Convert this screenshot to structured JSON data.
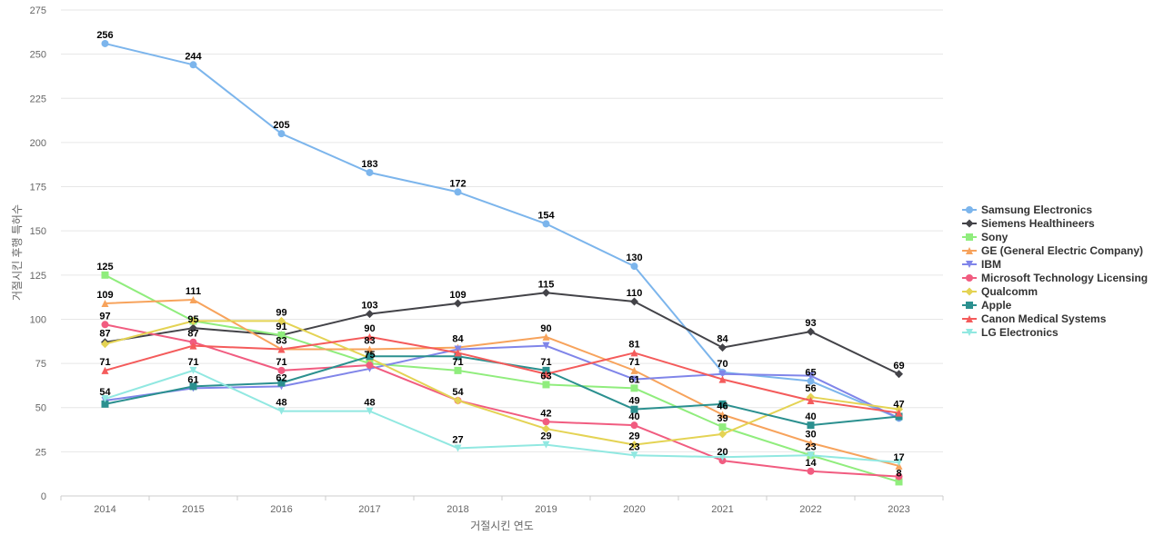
{
  "chart_data": {
    "type": "line",
    "title": "",
    "xlabel": "거절시킨 연도",
    "ylabel": "거절시킨 후행 특허수",
    "x": [
      2014,
      2015,
      2016,
      2017,
      2018,
      2019,
      2020,
      2021,
      2022,
      2023
    ],
    "ylim": [
      0,
      275
    ],
    "yticks": [
      0,
      25,
      50,
      75,
      100,
      125,
      150,
      175,
      200,
      225,
      250,
      275
    ],
    "grid": true,
    "legend_position": "right",
    "series": [
      {
        "name": "Samsung Electronics",
        "color": "#7cb5ec",
        "marker": "circle",
        "values": [
          256,
          244,
          205,
          183,
          172,
          154,
          130,
          70,
          65,
          44
        ]
      },
      {
        "name": "Siemens Healthineers",
        "color": "#434348",
        "marker": "diamond",
        "values": [
          87,
          95,
          91,
          103,
          109,
          115,
          110,
          84,
          93,
          69
        ]
      },
      {
        "name": "Sony",
        "color": "#90ed7d",
        "marker": "square",
        "values": [
          125,
          99,
          91,
          75,
          71,
          63,
          61,
          39,
          23,
          8
        ]
      },
      {
        "name": "GE (General Electric Company)",
        "color": "#f7a35c",
        "marker": "triangle",
        "values": [
          109,
          111,
          83,
          83,
          84,
          90,
          71,
          46,
          30,
          17
        ]
      },
      {
        "name": "IBM",
        "color": "#8085e9",
        "marker": "triangle-down",
        "values": [
          54,
          61,
          62,
          72,
          83,
          85,
          66,
          69,
          68,
          44
        ]
      },
      {
        "name": "Microsoft Technology Licensing",
        "color": "#f15c80",
        "marker": "circle",
        "values": [
          97,
          87,
          71,
          74,
          54,
          42,
          40,
          20,
          14,
          11
        ]
      },
      {
        "name": "Qualcomm",
        "color": "#e4d354",
        "marker": "diamond",
        "values": [
          86,
          99,
          99,
          78,
          54,
          38,
          29,
          35,
          56,
          49
        ]
      },
      {
        "name": "Apple",
        "color": "#2b908f",
        "marker": "square",
        "values": [
          52,
          62,
          64,
          79,
          79,
          71,
          49,
          52,
          40,
          45
        ]
      },
      {
        "name": "Canon Medical Systems",
        "color": "#f45b5b",
        "marker": "triangle",
        "values": [
          71,
          85,
          83,
          90,
          81,
          69,
          81,
          66,
          54,
          47
        ]
      },
      {
        "name": "LG Electronics",
        "color": "#91e8e1",
        "marker": "triangle-down",
        "values": [
          55,
          71,
          48,
          48,
          27,
          29,
          23,
          22,
          23,
          19
        ]
      }
    ],
    "data_labels": [
      {
        "text": "256",
        "x": 2014,
        "y": 256
      },
      {
        "text": "125",
        "x": 2014,
        "y": 125
      },
      {
        "text": "109",
        "x": 2014,
        "y": 109
      },
      {
        "text": "97",
        "x": 2014,
        "y": 97
      },
      {
        "text": "87",
        "x": 2014,
        "y": 87
      },
      {
        "text": "71",
        "x": 2014,
        "y": 71
      },
      {
        "text": "54",
        "x": 2014,
        "y": 54
      },
      {
        "text": "244",
        "x": 2015,
        "y": 244
      },
      {
        "text": "111",
        "x": 2015,
        "y": 111
      },
      {
        "text": "95",
        "x": 2015,
        "y": 95
      },
      {
        "text": "87",
        "x": 2015,
        "y": 87
      },
      {
        "text": "71",
        "x": 2015,
        "y": 71
      },
      {
        "text": "61",
        "x": 2015,
        "y": 61
      },
      {
        "text": "205",
        "x": 2016,
        "y": 205
      },
      {
        "text": "99",
        "x": 2016,
        "y": 99
      },
      {
        "text": "91",
        "x": 2016,
        "y": 91
      },
      {
        "text": "83",
        "x": 2016,
        "y": 83
      },
      {
        "text": "71",
        "x": 2016,
        "y": 71
      },
      {
        "text": "62",
        "x": 2016,
        "y": 62
      },
      {
        "text": "48",
        "x": 2016,
        "y": 48
      },
      {
        "text": "183",
        "x": 2017,
        "y": 183
      },
      {
        "text": "103",
        "x": 2017,
        "y": 103
      },
      {
        "text": "90",
        "x": 2017,
        "y": 90
      },
      {
        "text": "83",
        "x": 2017,
        "y": 83
      },
      {
        "text": "75",
        "x": 2017,
        "y": 75
      },
      {
        "text": "48",
        "x": 2017,
        "y": 48
      },
      {
        "text": "172",
        "x": 2018,
        "y": 172
      },
      {
        "text": "109",
        "x": 2018,
        "y": 109
      },
      {
        "text": "84",
        "x": 2018,
        "y": 84
      },
      {
        "text": "71",
        "x": 2018,
        "y": 71
      },
      {
        "text": "54",
        "x": 2018,
        "y": 54
      },
      {
        "text": "27",
        "x": 2018,
        "y": 27
      },
      {
        "text": "154",
        "x": 2019,
        "y": 154
      },
      {
        "text": "115",
        "x": 2019,
        "y": 115
      },
      {
        "text": "90",
        "x": 2019,
        "y": 90
      },
      {
        "text": "71",
        "x": 2019,
        "y": 71
      },
      {
        "text": "63",
        "x": 2019,
        "y": 63
      },
      {
        "text": "42",
        "x": 2019,
        "y": 42
      },
      {
        "text": "29",
        "x": 2019,
        "y": 29
      },
      {
        "text": "130",
        "x": 2020,
        "y": 130
      },
      {
        "text": "110",
        "x": 2020,
        "y": 110
      },
      {
        "text": "81",
        "x": 2020,
        "y": 81
      },
      {
        "text": "71",
        "x": 2020,
        "y": 71
      },
      {
        "text": "61",
        "x": 2020,
        "y": 61
      },
      {
        "text": "49",
        "x": 2020,
        "y": 49
      },
      {
        "text": "40",
        "x": 2020,
        "y": 40
      },
      {
        "text": "29",
        "x": 2020,
        "y": 29
      },
      {
        "text": "23",
        "x": 2020,
        "y": 23
      },
      {
        "text": "84",
        "x": 2021,
        "y": 84
      },
      {
        "text": "70",
        "x": 2021,
        "y": 70
      },
      {
        "text": "46",
        "x": 2021,
        "y": 46
      },
      {
        "text": "39",
        "x": 2021,
        "y": 39
      },
      {
        "text": "20",
        "x": 2021,
        "y": 20
      },
      {
        "text": "93",
        "x": 2022,
        "y": 93
      },
      {
        "text": "65",
        "x": 2022,
        "y": 65
      },
      {
        "text": "56",
        "x": 2022,
        "y": 56
      },
      {
        "text": "40",
        "x": 2022,
        "y": 40
      },
      {
        "text": "30",
        "x": 2022,
        "y": 30
      },
      {
        "text": "23",
        "x": 2022,
        "y": 23
      },
      {
        "text": "14",
        "x": 2022,
        "y": 14
      },
      {
        "text": "69",
        "x": 2023,
        "y": 69
      },
      {
        "text": "47",
        "x": 2023,
        "y": 47
      },
      {
        "text": "17",
        "x": 2023,
        "y": 17
      },
      {
        "text": "8",
        "x": 2023,
        "y": 8
      }
    ]
  }
}
